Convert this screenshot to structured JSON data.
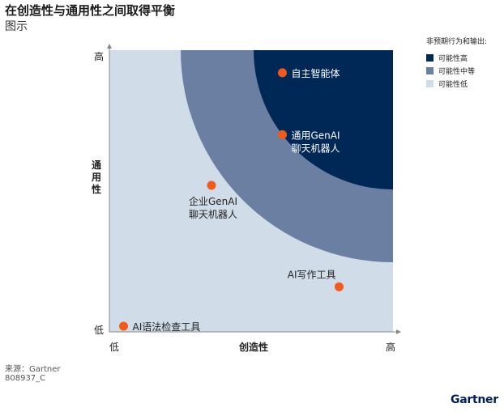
{
  "header": {
    "title": "在创造性与通用性之间取得平衡",
    "subtitle": "图示"
  },
  "legend": {
    "title": "非预期行为和输出:",
    "items": [
      {
        "label": "可能性高",
        "color": "#002856"
      },
      {
        "label": "可能性中等",
        "color": "#6b7fa3"
      },
      {
        "label": "可能性低",
        "color": "#d0dce8"
      }
    ]
  },
  "chart_data": {
    "type": "scatter",
    "xlabel": "创造性",
    "ylabel": "通用性",
    "x_tick_labels": [
      "低",
      "高"
    ],
    "y_tick_labels": [
      "低",
      "高"
    ],
    "xlim": [
      0,
      100
    ],
    "ylim": [
      0,
      100
    ],
    "grid": false,
    "legend_position": "top-right",
    "marker_color": "#f25a1a",
    "zones": [
      {
        "level": "可能性低",
        "color": "#d0dce8"
      },
      {
        "level": "可能性中等",
        "color": "#6b7fa3"
      },
      {
        "level": "可能性高",
        "color": "#002856"
      }
    ],
    "points": [
      {
        "label": "自主智能体",
        "x": 61,
        "y": 92
      },
      {
        "label": "通用GenAI 聊天机器人",
        "x": 61,
        "y": 70
      },
      {
        "label": "企业GenAI 聊天机器人",
        "x": 36,
        "y": 52
      },
      {
        "label": "AI写作工具",
        "x": 81,
        "y": 16
      },
      {
        "label": "AI语法检查工具",
        "x": 5,
        "y": 2
      }
    ]
  },
  "footer": {
    "source": "来源：Gartner",
    "doc_id": "808937_C",
    "brand": "Gartner"
  }
}
